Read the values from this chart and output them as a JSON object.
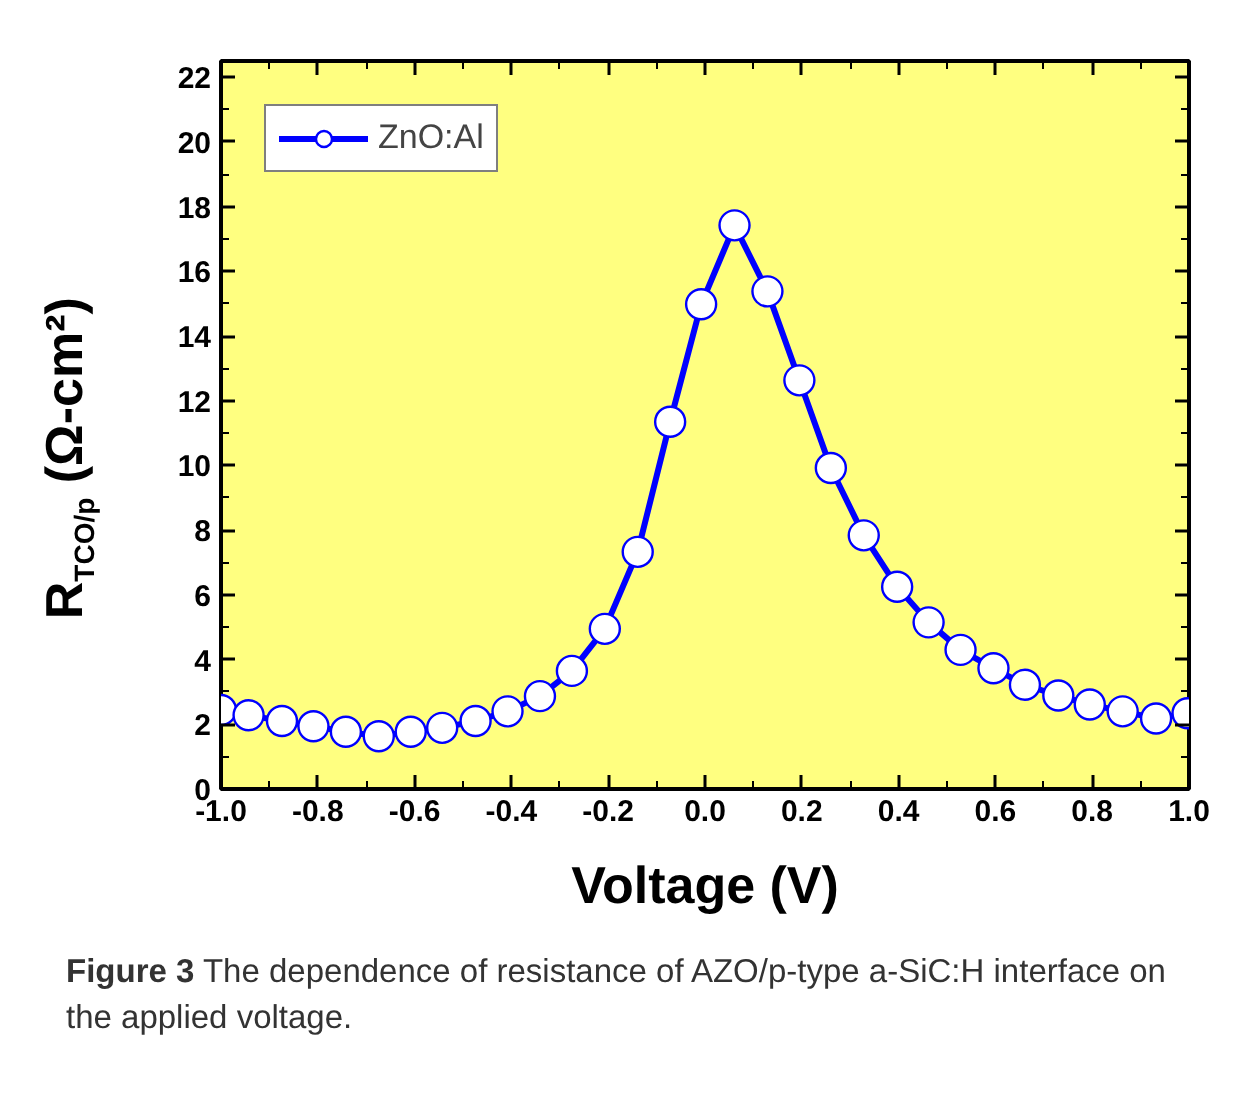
{
  "chart_data": {
    "type": "line",
    "xlabel": "Voltage (V)",
    "ylabel": "R$_{TCO/p}$ (Ω-cm²)",
    "annotations": [
      "Figure 3 The dependence of resistance of AZO/p-type a-SiC:H interface on the applied voltage."
    ],
    "x": [
      -1.0,
      -0.943,
      -0.874,
      -0.809,
      -0.742,
      -0.674,
      -0.608,
      -0.543,
      -0.474,
      -0.408,
      -0.341,
      -0.275,
      -0.207,
      -0.139,
      -0.072,
      -0.008,
      0.061,
      0.129,
      0.195,
      0.26,
      0.328,
      0.397,
      0.462,
      0.528,
      0.596,
      0.661,
      0.73,
      0.795,
      0.863,
      0.932,
      0.997
    ],
    "series": [
      {
        "name": "ZnO:Al",
        "color": "#0000ff",
        "values": [
          2.44,
          2.28,
          2.1,
          1.94,
          1.77,
          1.63,
          1.77,
          1.89,
          2.1,
          2.4,
          2.87,
          3.65,
          4.95,
          7.33,
          11.35,
          14.98,
          17.42,
          15.38,
          12.63,
          9.92,
          7.84,
          6.25,
          5.15,
          4.3,
          3.73,
          3.22,
          2.89,
          2.61,
          2.4,
          2.18,
          2.34
        ]
      }
    ],
    "xlim": [
      -1.0,
      1.0
    ],
    "ylim": [
      0,
      22.5
    ],
    "xticks": [
      {
        "value": -1.0,
        "label": "-1.0"
      },
      -0.8,
      -0.6,
      -0.4,
      -0.2,
      {
        "value": 0.0,
        "label": "0.0"
      },
      0.2,
      0.4,
      0.6,
      0.8,
      {
        "value": 1.0,
        "label": "1.0"
      }
    ],
    "yticks": [
      0,
      2,
      4,
      6,
      8,
      10,
      12,
      14,
      16,
      18,
      20,
      22
    ],
    "grid": false,
    "legend": "top left",
    "marker": "circle",
    "line_style": "solid"
  }
}
